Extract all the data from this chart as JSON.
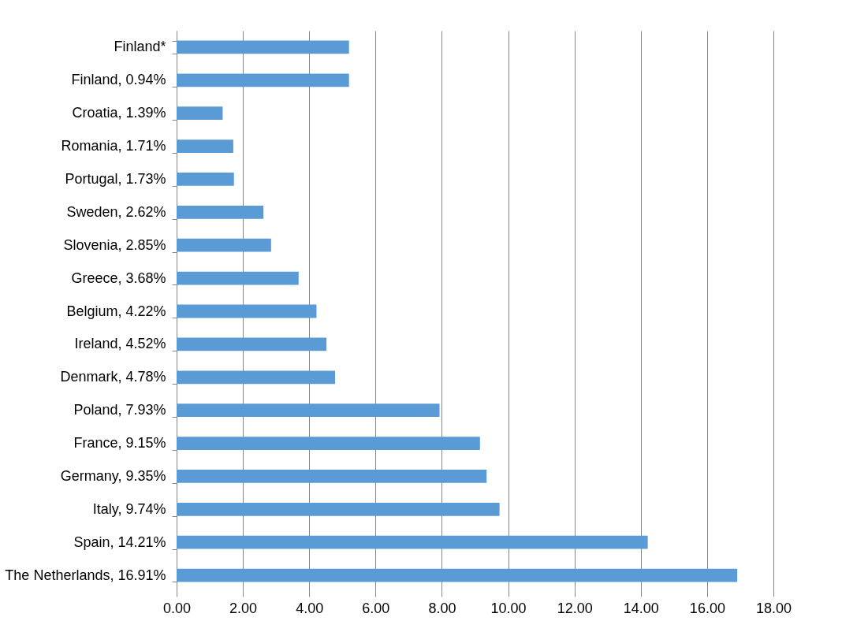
{
  "chart_data": {
    "type": "bar",
    "orientation": "horizontal",
    "categories": [
      "Finland*",
      "Finland, 0.94%",
      "Croatia, 1.39%",
      "Romania, 1.71%",
      "Portugal, 1.73%",
      "Sweden, 2.62%",
      "Slovenia, 2.85%",
      "Greece, 3.68%",
      "Belgium, 4.22%",
      "Ireland, 4.52%",
      "Denmark, 4.78%",
      "Poland, 7.93%",
      "France, 9.15%",
      "Germany, 9.35%",
      "Italy, 9.74%",
      "Spain, 14.21%",
      "The Netherlands, 16.91%"
    ],
    "values": [
      5.2,
      5.2,
      1.39,
      1.71,
      1.73,
      2.62,
      2.85,
      3.68,
      4.22,
      4.52,
      4.78,
      7.93,
      9.15,
      9.35,
      9.74,
      14.21,
      16.91
    ],
    "color": "#5b9bd5",
    "xlim": [
      0,
      18
    ],
    "xticks": [
      {
        "value": 0,
        "label": "0.00"
      },
      {
        "value": 2,
        "label": "2.00"
      },
      {
        "value": 4,
        "label": "4.00"
      },
      {
        "value": 6,
        "label": "6.00"
      },
      {
        "value": 8,
        "label": "8.00"
      },
      {
        "value": 10,
        "label": "10.00"
      },
      {
        "value": 12,
        "label": "12.00"
      },
      {
        "value": 14,
        "label": "14.00"
      },
      {
        "value": 16,
        "label": "16.00"
      },
      {
        "value": 18,
        "label": "18.00"
      }
    ],
    "grid": "x"
  }
}
